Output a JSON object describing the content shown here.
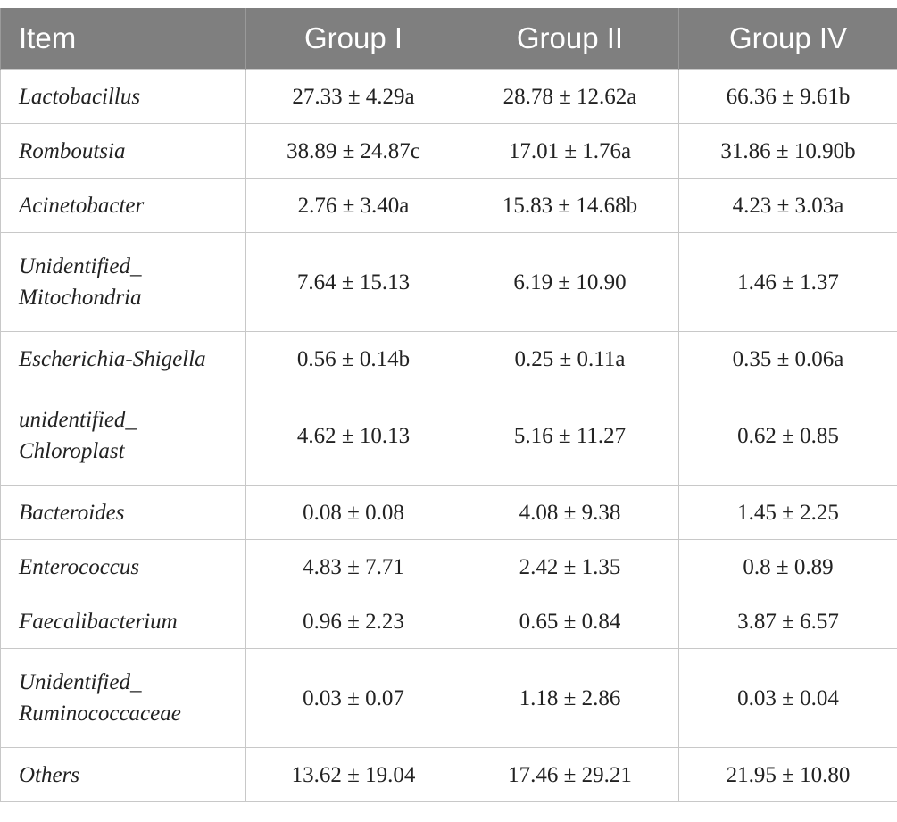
{
  "table": {
    "headers": [
      "Item",
      "Group I",
      "Group II",
      "Group IV"
    ],
    "rows": [
      {
        "item": [
          "Lactobacillus"
        ],
        "values": [
          "27.33 ± 4.29a",
          "28.78 ± 12.62a",
          "66.36 ± 9.61b"
        ]
      },
      {
        "item": [
          "Romboutsia"
        ],
        "values": [
          "38.89 ± 24.87c",
          "17.01 ± 1.76a",
          "31.86 ± 10.90b"
        ]
      },
      {
        "item": [
          "Acinetobacter"
        ],
        "values": [
          "2.76 ± 3.40a",
          "15.83 ± 14.68b",
          "4.23 ± 3.03a"
        ]
      },
      {
        "item": [
          "Unidentified_",
          "Mitochondria"
        ],
        "values": [
          "7.64 ± 15.13",
          "6.19 ± 10.90",
          "1.46 ± 1.37"
        ]
      },
      {
        "item": [
          "Escherichia-Shigella"
        ],
        "values": [
          "0.56 ± 0.14b",
          "0.25 ± 0.11a",
          "0.35 ± 0.06a"
        ]
      },
      {
        "item": [
          "unidentified_",
          "Chloroplast"
        ],
        "values": [
          "4.62 ± 10.13",
          "5.16 ± 11.27",
          "0.62 ± 0.85"
        ]
      },
      {
        "item": [
          "Bacteroides"
        ],
        "values": [
          "0.08 ± 0.08",
          "4.08 ± 9.38",
          "1.45 ± 2.25"
        ]
      },
      {
        "item": [
          "Enterococcus"
        ],
        "values": [
          "4.83 ± 7.71",
          "2.42 ± 1.35",
          "0.8 ± 0.89"
        ]
      },
      {
        "item": [
          "Faecalibacterium"
        ],
        "values": [
          "0.96 ± 2.23",
          "0.65 ± 0.84",
          "3.87 ± 6.57"
        ]
      },
      {
        "item": [
          "Unidentified_",
          "Ruminococcaceae"
        ],
        "values": [
          "0.03 ± 0.07",
          "1.18 ± 2.86",
          "0.03 ± 0.04"
        ]
      },
      {
        "item": [
          "Others"
        ],
        "values": [
          "13.62 ± 19.04",
          "17.46 ± 29.21",
          "21.95 ± 10.80"
        ]
      }
    ]
  }
}
